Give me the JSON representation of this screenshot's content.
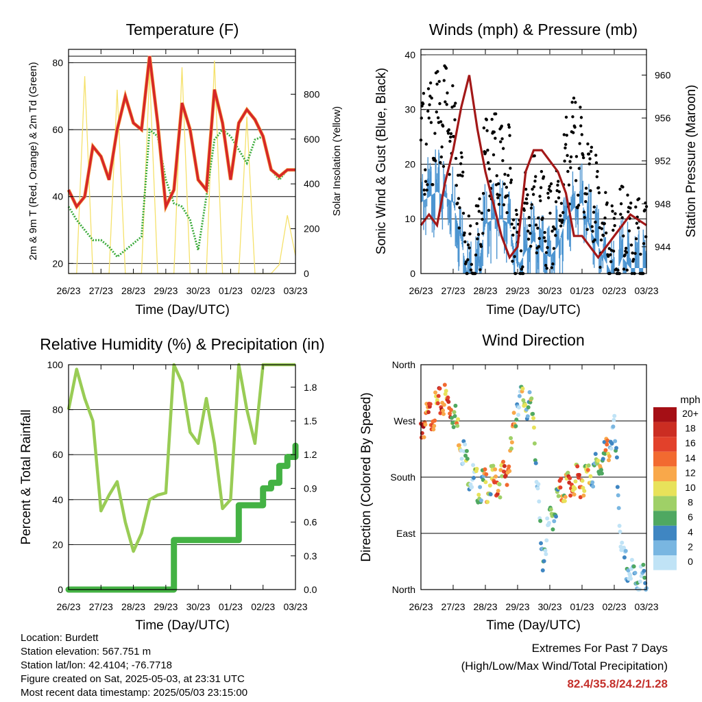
{
  "x_ticks": [
    "26/23",
    "27/23",
    "28/23",
    "29/23",
    "30/23",
    "01/23",
    "02/23",
    "03/23"
  ],
  "panels": {
    "temperature": {
      "title": "Temperature (F)",
      "xlabel": "Time (Day/UTC)",
      "ylabel_left": "2m & 9m T (Red, Orange) & 2m Td (Green)",
      "ylabel_right": "Solar Insolation (Yellow)",
      "left_ticks": [
        "20",
        "40",
        "60",
        "80"
      ],
      "right_ticks": [
        "0",
        "200",
        "400",
        "600",
        "800"
      ]
    },
    "winds": {
      "title": "Winds (mph) & Pressure (mb)",
      "xlabel": "Time (Day/UTC)",
      "ylabel_left": "Sonic Wind & Gust (Blue, Black)",
      "ylabel_right": "Station Pressure (Maroon)",
      "left_ticks": [
        "0",
        "10",
        "20",
        "30",
        "40"
      ],
      "right_ticks": [
        "944",
        "948",
        "952",
        "956",
        "960"
      ]
    },
    "humidity": {
      "title": "Relative Humidity (%) & Precipitation (in)",
      "xlabel": "Time (Day/UTC)",
      "ylabel_left": "Percent & Total Rainfall",
      "left_ticks": [
        "0",
        "20",
        "40",
        "60",
        "80",
        "100"
      ],
      "right_ticks": [
        "0.0",
        "0.3",
        "0.6",
        "0.9",
        "1.2",
        "1.5",
        "1.8"
      ]
    },
    "direction": {
      "title": "Wind Direction",
      "xlabel": "Time (Day/UTC)",
      "ylabel_left": "Direction (Colored By Speed)",
      "left_ticks": [
        "North",
        "East",
        "South",
        "West",
        "North"
      ],
      "legend_title": "mph",
      "legend_labels": [
        "20+",
        "18",
        "16",
        "14",
        "12",
        "10",
        "8",
        "6",
        "4",
        "2",
        "0"
      ],
      "legend_colors": [
        "#a50f15",
        "#cb2d22",
        "#e2412b",
        "#f26a30",
        "#f9a84a",
        "#e8e25a",
        "#9fd067",
        "#4fa861",
        "#3f86c2",
        "#79b6e1",
        "#c0e3f6"
      ]
    }
  },
  "info": {
    "location": "Location: Burdett",
    "elevation": "Station elevation: 567.751 m",
    "latlon": "Station lat/lon: 42.4104; -76.7718",
    "created": "Figure created on Sat, 2025-05-03, at 23:31 UTC",
    "recent": "Most recent data timestamp: 2025/05/03 23:15:00"
  },
  "extremes": {
    "line1": "Extremes For Past 7 Days",
    "line2": "(High/Low/Max Wind/Total Precipitation)",
    "values": "82.4/35.8/24.2/1.28"
  },
  "chart_data": [
    {
      "type": "line",
      "title": "Temperature (F)",
      "xlabel": "Time (Day/UTC)",
      "ylabel": "2m & 9m T (Red, Orange) & 2m Td (Green)",
      "y2label": "Solar Insolation (Yellow)",
      "x": [
        0,
        0.25,
        0.5,
        0.75,
        1,
        1.25,
        1.5,
        1.75,
        2,
        2.25,
        2.5,
        2.75,
        3,
        3.25,
        3.5,
        3.75,
        4,
        4.25,
        4.5,
        4.75,
        5,
        5.25,
        5.5,
        5.75,
        6,
        6.25,
        6.5,
        6.75,
        7
      ],
      "ylim": [
        17,
        84
      ],
      "y2lim": [
        0,
        1000
      ],
      "series": [
        {
          "name": "2m T",
          "color": "#d62728",
          "values": [
            42,
            37,
            40,
            55,
            52,
            45,
            60,
            70,
            62,
            60,
            82,
            62,
            37,
            42,
            68,
            60,
            45,
            42,
            72,
            62,
            45,
            62,
            66,
            63,
            58,
            48,
            46,
            48,
            48
          ]
        },
        {
          "name": "2m Td",
          "color": "#3cab3c",
          "values": [
            37,
            33,
            30,
            27,
            27,
            25,
            22,
            24,
            26,
            28,
            60,
            58,
            45,
            38,
            37,
            33,
            24,
            40,
            57,
            60,
            58,
            54,
            50,
            57,
            58,
            48,
            45,
            48,
            48
          ]
        },
        {
          "name": "Solar",
          "color": "#f5e16a",
          "values": [
            0,
            0,
            880,
            0,
            0,
            0,
            820,
            0,
            0,
            0,
            900,
            0,
            0,
            0,
            920,
            0,
            0,
            0,
            950,
            0,
            0,
            0,
            700,
            0,
            0,
            0,
            40,
            260,
            80
          ]
        }
      ]
    },
    {
      "type": "scatter",
      "title": "Winds (mph) & Pressure (mb)",
      "xlabel": "Time (Day/UTC)",
      "ylabel": "Sonic Wind & Gust (Blue, Black)",
      "y2label": "Station Pressure (Maroon)",
      "x": [
        0,
        0.25,
        0.5,
        0.75,
        1,
        1.25,
        1.5,
        1.75,
        2,
        2.25,
        2.5,
        2.75,
        3,
        3.25,
        3.5,
        3.75,
        4,
        4.25,
        4.5,
        4.75,
        5,
        5.25,
        5.5,
        5.75,
        6,
        6.25,
        6.5,
        6.75,
        7
      ],
      "ylim": [
        0,
        41
      ],
      "y2lim": [
        941.5,
        962.4
      ],
      "series": [
        {
          "name": "Gust",
          "color": "#000000",
          "values": [
            28,
            30,
            32,
            35,
            30,
            20,
            5,
            8,
            25,
            26,
            25,
            22,
            8,
            15,
            18,
            14,
            12,
            16,
            25,
            28,
            25,
            20,
            17,
            12,
            8,
            12,
            10,
            9,
            8
          ]
        },
        {
          "name": "Wind",
          "color": "#4d95d1",
          "values": [
            17,
            18,
            19,
            18,
            17,
            10,
            2,
            4,
            13,
            14,
            14,
            13,
            5,
            8,
            10,
            8,
            7,
            9,
            14,
            16,
            17,
            12,
            9,
            6,
            3,
            7,
            5,
            5,
            5
          ]
        },
        {
          "name": "Pressure",
          "color": "#a31818",
          "values": [
            946,
            947,
            946,
            950,
            953,
            957,
            960,
            955,
            951,
            948,
            945,
            943,
            944,
            951,
            953,
            953,
            952,
            951,
            949,
            945,
            945,
            944,
            943,
            944,
            945,
            946,
            947,
            946.5,
            946
          ]
        }
      ]
    },
    {
      "type": "line",
      "title": "Relative Humidity (%) & Precipitation (in)",
      "xlabel": "Time (Day/UTC)",
      "ylabel": "Percent & Total Rainfall",
      "ylim": [
        0,
        100
      ],
      "y2lim": [
        0,
        2.0
      ],
      "x": [
        0,
        0.25,
        0.5,
        0.75,
        1,
        1.25,
        1.5,
        1.75,
        2,
        2.25,
        2.5,
        2.75,
        3,
        3.25,
        3.5,
        3.75,
        4,
        4.25,
        4.5,
        4.75,
        5,
        5.25,
        5.5,
        5.75,
        6,
        6.25,
        6.5,
        6.75,
        7
      ],
      "series": [
        {
          "name": "RH",
          "color": "#99cc55",
          "values": [
            80,
            98,
            85,
            75,
            35,
            42,
            48,
            30,
            17,
            25,
            40,
            42,
            43,
            100,
            92,
            70,
            65,
            85,
            65,
            36,
            40,
            100,
            80,
            65,
            100,
            100,
            100,
            100,
            100
          ]
        },
        {
          "name": "Rain",
          "color": "#44b244",
          "values": [
            0,
            0,
            0,
            0,
            0,
            0,
            0,
            0,
            0,
            0,
            0,
            0,
            0,
            0.44,
            0.44,
            0.44,
            0.44,
            0.44,
            0.44,
            0.44,
            0.44,
            0.75,
            0.75,
            0.75,
            0.9,
            0.95,
            1.1,
            1.18,
            1.28
          ]
        }
      ]
    },
    {
      "type": "scatter",
      "title": "Wind Direction",
      "xlabel": "Time (Day/UTC)",
      "ylabel": "Direction (Colored By Speed)",
      "ylim": [
        0,
        360
      ],
      "yticks": [
        "North",
        "East",
        "South",
        "West",
        "North"
      ],
      "x": [
        0,
        0.25,
        0.5,
        0.75,
        1,
        1.25,
        1.5,
        1.75,
        2,
        2.25,
        2.5,
        2.75,
        3,
        3.25,
        3.5,
        3.75,
        4,
        4.25,
        4.5,
        4.75,
        5,
        5.25,
        5.5,
        5.75,
        6,
        6.25,
        6.5,
        6.75,
        7
      ],
      "series": [
        {
          "name": "Direction",
          "values": [
            275,
            290,
            305,
            320,
            300,
            250,
            200,
            180,
            180,
            185,
            190,
            215,
            320,
            315,
            290,
            60,
            120,
            160,
            180,
            185,
            190,
            200,
            210,
            230,
            270,
            60,
            40,
            30,
            30
          ]
        },
        {
          "name": "Speed",
          "values": [
            18,
            17,
            18,
            19,
            14,
            8,
            6,
            8,
            12,
            14,
            16,
            18,
            6,
            10,
            8,
            4,
            6,
            12,
            16,
            17,
            16,
            10,
            8,
            12,
            4,
            2,
            4,
            3,
            4
          ]
        }
      ]
    }
  ]
}
